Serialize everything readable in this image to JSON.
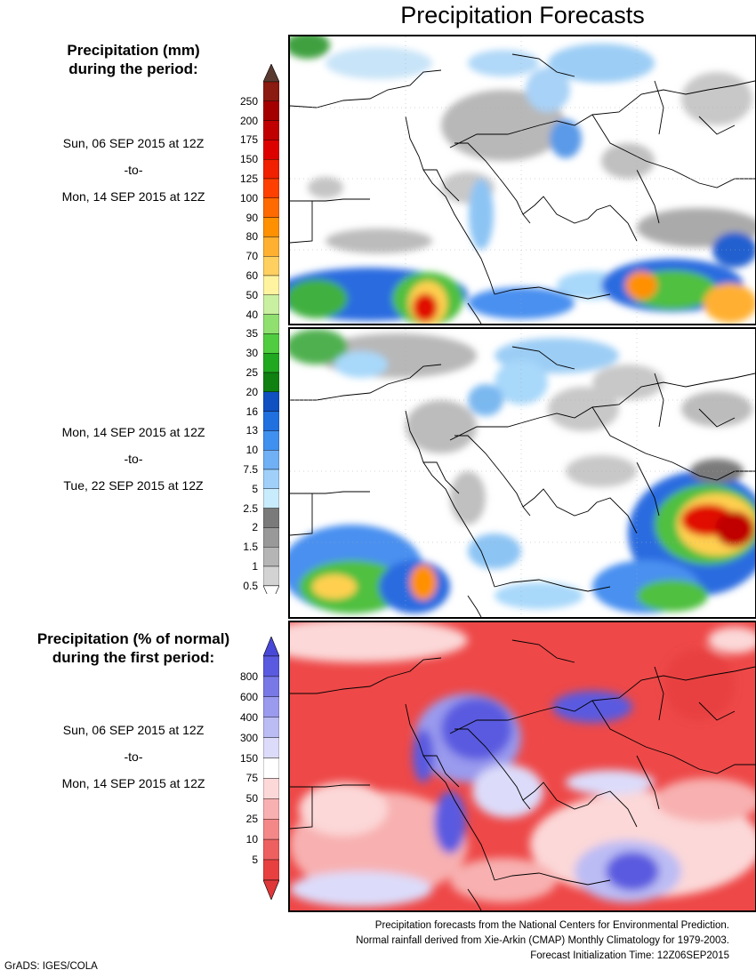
{
  "title": "Precipitation Forecasts",
  "section_mm": {
    "title_line1": "Precipitation (mm)",
    "title_line2": "during the period:"
  },
  "period1": {
    "start": "Sun, 06 SEP 2015 at 12Z",
    "sep": "-to-",
    "end": "Mon, 14 SEP 2015 at 12Z"
  },
  "period2": {
    "start": "Mon, 14 SEP 2015 at 12Z",
    "sep": "-to-",
    "end": "Tue, 22 SEP 2015 at 12Z"
  },
  "colorbar_mm": {
    "labels": [
      "250",
      "200",
      "175",
      "150",
      "125",
      "100",
      "90",
      "80",
      "70",
      "60",
      "50",
      "40",
      "35",
      "30",
      "25",
      "20",
      "16",
      "13",
      "10",
      "7.5",
      "5",
      "2.5",
      "2",
      "1.5",
      "1",
      "0.5"
    ],
    "colors": [
      "#8b1a10",
      "#a40000",
      "#c00000",
      "#dd0000",
      "#f02000",
      "#ff4000",
      "#ff6a00",
      "#ff9000",
      "#ffb030",
      "#ffd060",
      "#fff3a0",
      "#c8f0a0",
      "#90e070",
      "#50cc40",
      "#20a820",
      "#108010",
      "#1050c0",
      "#2070e0",
      "#4090f0",
      "#70b0f5",
      "#a0d0fa",
      "#c8ecfc",
      "#7a7a7a",
      "#999999",
      "#b5b5b5",
      "#d3d3d3"
    ],
    "top_cap_color": "#5a3a30"
  },
  "section_pct": {
    "title_line1": "Precipitation (% of normal)",
    "title_line2": "during the first period:"
  },
  "period3": {
    "start": "Sun, 06 SEP 2015 at 12Z",
    "sep": "-to-",
    "end": "Mon, 14 SEP 2015 at 12Z"
  },
  "colorbar_pct": {
    "labels": [
      "800",
      "600",
      "400",
      "300",
      "150",
      "75",
      "50",
      "25",
      "10",
      "5"
    ],
    "colors": [
      "#5a5ae0",
      "#7878e6",
      "#9a9aee",
      "#bcbcf4",
      "#dcdcfa",
      "#ffffff",
      "#fcd8d8",
      "#f8b0b0",
      "#f48888",
      "#ee6060",
      "#e84040"
    ],
    "top_cap_color": "#4848d8",
    "bottom_cap_color": "#e03838"
  },
  "footer": {
    "line1": "Precipitation forecasts from the National Centers for Environmental Prediction.",
    "line2": "Normal rainfall derived from Xie-Arkin (CMAP) Monthly Climatology for 1979-2003.",
    "line3": "Forecast Initialization Time: 12Z06SEP2015"
  },
  "credit": "GrADS: IGES/COLA"
}
